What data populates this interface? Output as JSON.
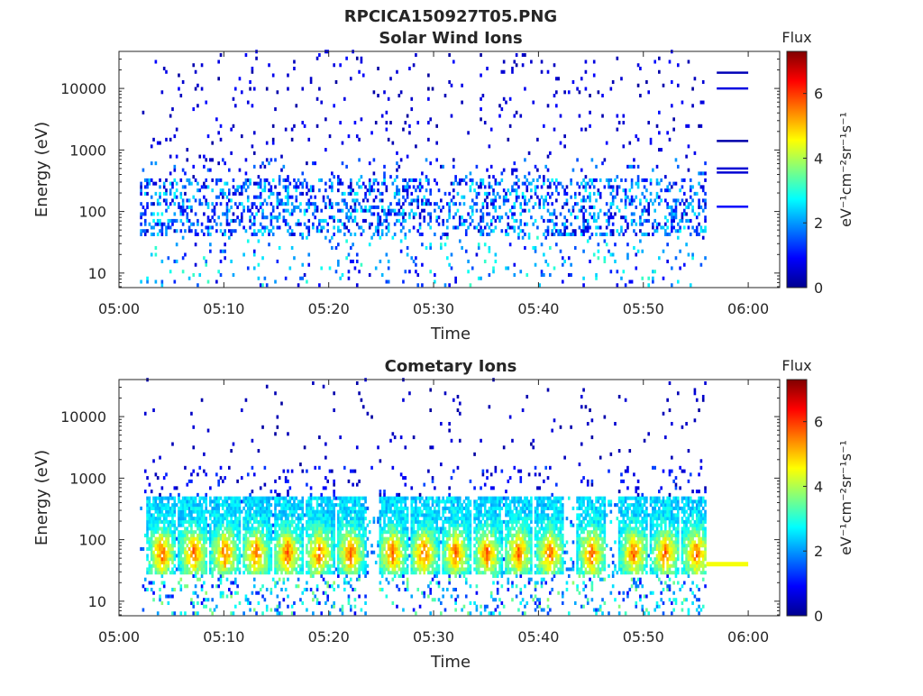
{
  "figure": {
    "title": "RPCICA150927T05.PNG"
  },
  "colors": {
    "colormap": "jet",
    "axis": "#262626",
    "background": "#ffffff"
  },
  "chart_data": [
    {
      "type": "heatmap",
      "title": "Solar Wind Ions",
      "xlabel": "Time",
      "ylabel": "Energy (eV)",
      "x_ticks": [
        "05:00",
        "05:10",
        "05:20",
        "05:30",
        "05:40",
        "05:50",
        "06:00"
      ],
      "xlim": [
        "05:00",
        "06:03"
      ],
      "y_scale": "log",
      "y_ticks": [
        "10",
        "100",
        "1000",
        "10000"
      ],
      "ylim": [
        5.8,
        40000
      ],
      "colorbar": {
        "label": "eV⁻¹cm⁻²sr⁻¹s⁻¹",
        "title": "Flux",
        "ticks": [
          "0",
          "2",
          "4",
          "6"
        ],
        "range": [
          0,
          7.3
        ]
      },
      "data_span": [
        "05:02",
        "05:56"
      ],
      "lines": [
        {
          "energy_eV": 18000,
          "flux": 0.4,
          "start": "05:57",
          "end": "06:00"
        },
        {
          "energy_eV": 10000,
          "flux": 0.7,
          "start": "05:57",
          "end": "06:00"
        },
        {
          "energy_eV": 1400,
          "flux": 0.3,
          "start": "05:57",
          "end": "06:00"
        },
        {
          "energy_eV": 500,
          "flux": 0.6,
          "start": "05:57",
          "end": "06:00"
        },
        {
          "energy_eV": 430,
          "flux": 0.6,
          "start": "05:57",
          "end": "06:00"
        },
        {
          "energy_eV": 120,
          "flux": 0.9,
          "start": "05:57",
          "end": "06:00"
        }
      ]
    },
    {
      "type": "heatmap",
      "title": "Cometary Ions",
      "xlabel": "Time",
      "ylabel": "Energy (eV)",
      "x_ticks": [
        "05:00",
        "05:10",
        "05:20",
        "05:30",
        "05:40",
        "05:50",
        "06:00"
      ],
      "xlim": [
        "05:00",
        "06:03"
      ],
      "y_scale": "log",
      "y_ticks": [
        "10",
        "100",
        "1000",
        "10000"
      ],
      "ylim": [
        5.8,
        40000
      ],
      "colorbar": {
        "label": "eV⁻¹cm⁻²sr⁻¹s⁻¹",
        "title": "Flux",
        "ticks": [
          "0",
          "2",
          "4",
          "6"
        ],
        "range": [
          0,
          7.3
        ]
      },
      "data_span": [
        "05:02",
        "05:56"
      ],
      "bursts_minutes_after_0500": [
        4,
        7,
        10,
        13,
        16,
        19,
        22,
        26,
        29,
        32,
        35,
        38,
        41,
        45,
        49,
        52,
        55
      ],
      "lines": [
        {
          "energy_eV": 40,
          "flux": 4.5,
          "start": "05:56",
          "end": "06:00"
        }
      ]
    }
  ]
}
